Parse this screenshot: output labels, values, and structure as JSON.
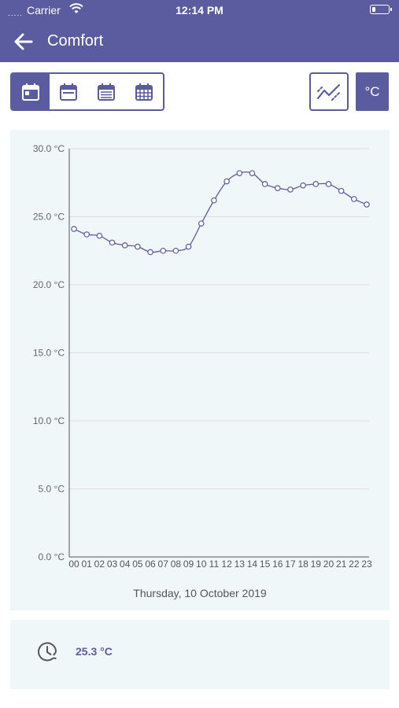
{
  "status_bar": {
    "signal": ".....",
    "carrier": "Carrier",
    "time": "12:14 PM"
  },
  "header": {
    "title": "Comfort",
    "back_icon": "arrow-left-icon"
  },
  "toolbar": {
    "periods": [
      {
        "icon": "calendar-day-icon",
        "active": true
      },
      {
        "icon": "calendar-week-icon",
        "active": false
      },
      {
        "icon": "calendar-month-icon",
        "active": false
      },
      {
        "icon": "calendar-year-icon",
        "active": false
      }
    ],
    "chart_toggle_icon": "line-chart-icon",
    "unit_label": "°C"
  },
  "colors": {
    "accent": "#5b5b9f",
    "card_bg": "#f0f7f9",
    "grid": "#dddddd"
  },
  "chart_data": {
    "type": "line",
    "x": [
      "00",
      "01",
      "02",
      "03",
      "04",
      "05",
      "06",
      "07",
      "08",
      "09",
      "10",
      "11",
      "12",
      "13",
      "14",
      "15",
      "16",
      "17",
      "18",
      "19",
      "20",
      "21",
      "22",
      "23"
    ],
    "series": [
      {
        "values": [
          24.1,
          23.7,
          23.6,
          23.1,
          22.9,
          22.8,
          22.4,
          22.5,
          22.5,
          22.8,
          24.5,
          26.2,
          27.6,
          28.2,
          28.2,
          27.4,
          27.1,
          27.0,
          27.3,
          27.4,
          27.4,
          26.9,
          26.3,
          25.9
        ]
      }
    ],
    "y_ticks": [
      "0.0 °C",
      "5.0 °C",
      "10.0 °C",
      "15.0 °C",
      "20.0 °C",
      "25.0 °C",
      "30.0 °C"
    ],
    "ylim": [
      0,
      30
    ],
    "xlabel": "Thursday, 10 October 2019",
    "grid": true
  },
  "summary": {
    "icon": "clock-history-icon",
    "value": "25.3 °C"
  }
}
